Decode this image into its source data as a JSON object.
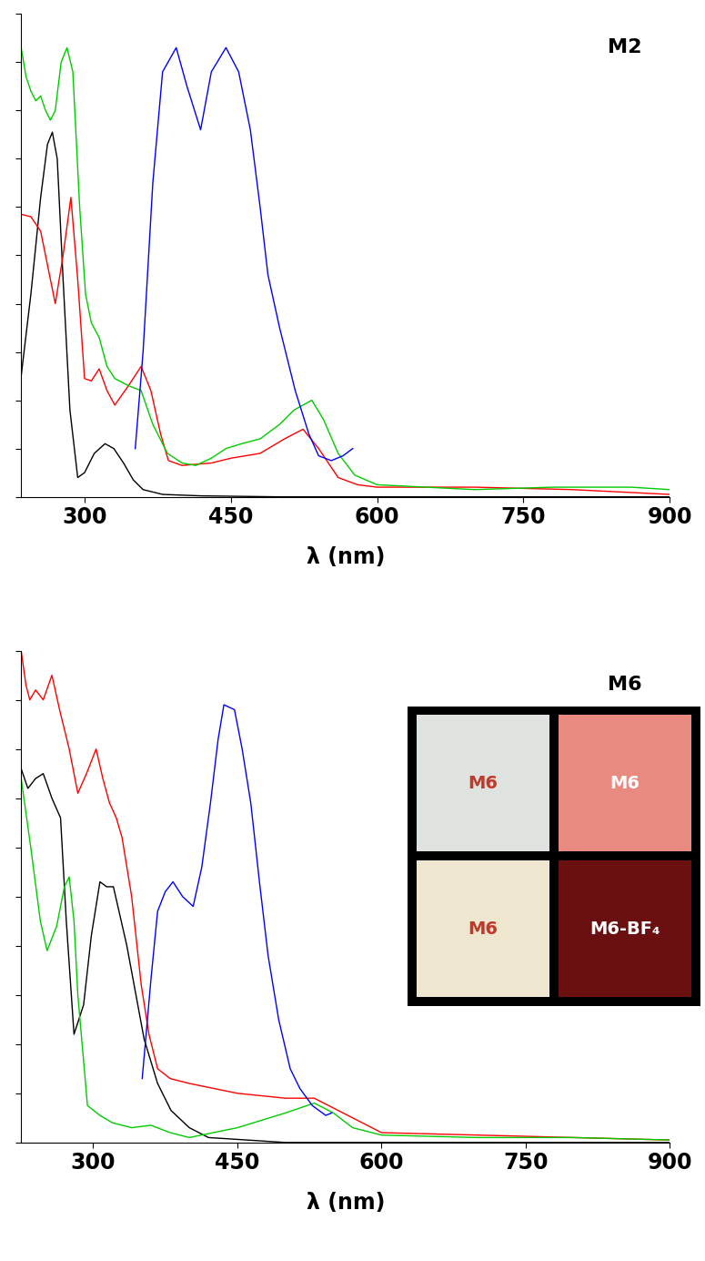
{
  "chart_data": [
    {
      "type": "line",
      "title": "M2",
      "xlabel": "λ (nm)",
      "xlim": [
        235,
        900
      ],
      "xticks": [
        300,
        450,
        600,
        750,
        900
      ],
      "ylim": [
        0,
        1.0
      ],
      "yticks": [
        0,
        0.1,
        0.2,
        0.3,
        0.4,
        0.5,
        0.6,
        0.7,
        0.8,
        0.9,
        1.0
      ],
      "tick_labels": "x",
      "series": [
        {
          "color": "#000000",
          "x": [
            235,
            245,
            255,
            262,
            267,
            272,
            278,
            285,
            293,
            300,
            310,
            321,
            330,
            340,
            350,
            360,
            380,
            420,
            500,
            900
          ],
          "values": [
            0.25,
            0.42,
            0.62,
            0.73,
            0.755,
            0.7,
            0.45,
            0.18,
            0.04,
            0.05,
            0.09,
            0.11,
            0.1,
            0.07,
            0.035,
            0.015,
            0.005,
            0.002,
            0.0,
            0.0
          ]
        },
        {
          "color": "#ff0000",
          "x": [
            235,
            245,
            255,
            262,
            270,
            278,
            286,
            293,
            300,
            307,
            315,
            323,
            331,
            345,
            358,
            368,
            378,
            386,
            400,
            430,
            450,
            480,
            505,
            524,
            540,
            560,
            580,
            600,
            700,
            800,
            900
          ],
          "values": [
            0.585,
            0.58,
            0.55,
            0.48,
            0.4,
            0.5,
            0.62,
            0.45,
            0.245,
            0.24,
            0.265,
            0.22,
            0.19,
            0.23,
            0.27,
            0.22,
            0.13,
            0.075,
            0.065,
            0.07,
            0.08,
            0.09,
            0.12,
            0.14,
            0.1,
            0.04,
            0.025,
            0.02,
            0.02,
            0.015,
            0.005
          ]
        },
        {
          "color": "#00cc00",
          "x": [
            235,
            240,
            245,
            250,
            255,
            260,
            265,
            270,
            276,
            282,
            288,
            295,
            301,
            307,
            315,
            323,
            331,
            345,
            358,
            370,
            385,
            400,
            414,
            430,
            445,
            461,
            480,
            500,
            515,
            533,
            545,
            560,
            577,
            600,
            700,
            780,
            860,
            900
          ],
          "values": [
            0.93,
            0.87,
            0.84,
            0.82,
            0.83,
            0.8,
            0.78,
            0.8,
            0.9,
            0.93,
            0.88,
            0.6,
            0.42,
            0.36,
            0.33,
            0.27,
            0.245,
            0.23,
            0.22,
            0.15,
            0.09,
            0.07,
            0.065,
            0.08,
            0.1,
            0.11,
            0.12,
            0.15,
            0.18,
            0.2,
            0.16,
            0.09,
            0.045,
            0.025,
            0.015,
            0.02,
            0.02,
            0.015
          ]
        },
        {
          "color": "#0000ff",
          "x": [
            352,
            360,
            370,
            380,
            394,
            405,
            419,
            430,
            445,
            458,
            470,
            480,
            488,
            500,
            516,
            530,
            540,
            553,
            565,
            575
          ],
          "values": [
            0.1,
            0.3,
            0.65,
            0.88,
            0.93,
            0.85,
            0.76,
            0.88,
            0.93,
            0.88,
            0.76,
            0.6,
            0.46,
            0.35,
            0.22,
            0.13,
            0.085,
            0.075,
            0.085,
            0.1
          ]
        }
      ]
    },
    {
      "type": "line",
      "title": "M6",
      "xlabel": "λ (nm)",
      "xlim": [
        225,
        900
      ],
      "xticks": [
        300,
        450,
        600,
        750,
        900
      ],
      "ylim": [
        0,
        1.0
      ],
      "yticks": [
        0,
        0.1,
        0.2,
        0.3,
        0.4,
        0.5,
        0.6,
        0.7,
        0.8,
        0.9,
        1.0
      ],
      "tick_labels": "x",
      "inset_labels": [
        "M6",
        "M6",
        "M6",
        "M6-BF₄"
      ],
      "series": [
        {
          "color": "#000000",
          "x": [
            225,
            232,
            240,
            248,
            257,
            266,
            272,
            280,
            290,
            298,
            307,
            314,
            321,
            335,
            353,
            367,
            381,
            400,
            420,
            500,
            900
          ],
          "values": [
            0.76,
            0.72,
            0.74,
            0.75,
            0.7,
            0.66,
            0.45,
            0.22,
            0.28,
            0.42,
            0.53,
            0.52,
            0.52,
            0.4,
            0.21,
            0.12,
            0.065,
            0.03,
            0.01,
            0.0,
            0.0
          ]
        },
        {
          "color": "#ff0000",
          "x": [
            225,
            230,
            234,
            240,
            248,
            257,
            265,
            275,
            284,
            293,
            303,
            310,
            317,
            324,
            330,
            340,
            350,
            358,
            367,
            380,
            400,
            450,
            500,
            530,
            560,
            600,
            700,
            800,
            900
          ],
          "values": [
            1.0,
            0.93,
            0.9,
            0.92,
            0.9,
            0.95,
            0.88,
            0.8,
            0.71,
            0.75,
            0.8,
            0.74,
            0.69,
            0.66,
            0.62,
            0.5,
            0.32,
            0.22,
            0.15,
            0.13,
            0.12,
            0.1,
            0.09,
            0.09,
            0.06,
            0.02,
            0.015,
            0.01,
            0.005
          ]
        },
        {
          "color": "#00cc00",
          "x": [
            225,
            235,
            245,
            252,
            262,
            270,
            275,
            280,
            284,
            294,
            307,
            320,
            340,
            360,
            380,
            400,
            450,
            500,
            530,
            550,
            570,
            600,
            700,
            800,
            900
          ],
          "values": [
            0.74,
            0.6,
            0.45,
            0.39,
            0.44,
            0.52,
            0.54,
            0.45,
            0.3,
            0.075,
            0.055,
            0.04,
            0.03,
            0.035,
            0.02,
            0.01,
            0.03,
            0.06,
            0.08,
            0.06,
            0.03,
            0.015,
            0.01,
            0.01,
            0.005
          ]
        },
        {
          "color": "#0000ff",
          "x": [
            351,
            360,
            367,
            375,
            383,
            393,
            404,
            413,
            422,
            430,
            436,
            447,
            455,
            464,
            473,
            482,
            493,
            505,
            515,
            528,
            542,
            548
          ],
          "values": [
            0.13,
            0.33,
            0.47,
            0.51,
            0.53,
            0.5,
            0.48,
            0.56,
            0.69,
            0.82,
            0.89,
            0.88,
            0.8,
            0.69,
            0.53,
            0.38,
            0.25,
            0.15,
            0.11,
            0.075,
            0.055,
            0.06
          ]
        }
      ]
    }
  ]
}
